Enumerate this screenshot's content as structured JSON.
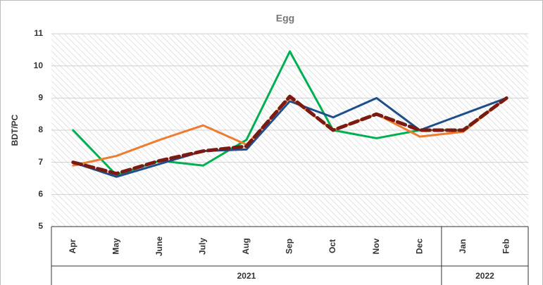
{
  "chart_data": {
    "type": "line",
    "title": "Egg",
    "y_label": "BDT/PC",
    "category_groups": [
      {
        "label": "2021",
        "categories": [
          "Apr",
          "May",
          "June",
          "July",
          "Aug",
          "Sep",
          "Oct",
          "Nov",
          "Dec"
        ]
      },
      {
        "label": "2022",
        "categories": [
          "Jan",
          "Feb"
        ]
      }
    ],
    "series": [
      {
        "color": "#00b050",
        "dash": false,
        "values": [
          8.0,
          6.6,
          7.05,
          6.9,
          7.7,
          10.45,
          8.0,
          7.75,
          8.0,
          8.0,
          9.0
        ]
      },
      {
        "color": "#ed7d31",
        "dash": false,
        "values": [
          6.9,
          7.2,
          7.7,
          8.15,
          7.55,
          9.0,
          8.0,
          8.5,
          7.8,
          7.95,
          9.0
        ]
      },
      {
        "color": "#1f4e8c",
        "dash": false,
        "values": [
          7.0,
          6.55,
          6.95,
          7.35,
          7.4,
          8.9,
          8.4,
          9.0,
          8.0,
          8.5,
          9.0
        ]
      },
      {
        "color": "#7b1a12",
        "dash": true,
        "values": [
          7.0,
          6.65,
          7.05,
          7.35,
          7.5,
          9.05,
          8.0,
          8.5,
          8.0,
          8.0,
          9.0
        ]
      }
    ],
    "ylim": [
      5,
      11
    ],
    "yticks": [
      5,
      6,
      7,
      8,
      9,
      10,
      11
    ],
    "grid": true
  }
}
